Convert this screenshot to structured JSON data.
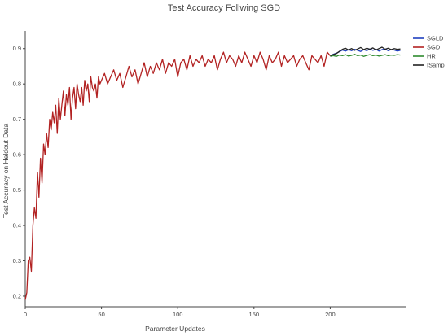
{
  "chart_data": {
    "type": "line",
    "title": "Test Accuracy Follwing SGD",
    "xlabel": "Parameter Updates",
    "ylabel": "Test Accuracy on Heldout Data",
    "xlim": [
      0,
      250
    ],
    "ylim": [
      0.17,
      0.95
    ],
    "xticks": [
      0,
      50,
      100,
      150,
      200
    ],
    "yticks": [
      0.2,
      0.3,
      0.4,
      0.5,
      0.6,
      0.7,
      0.8,
      0.9
    ],
    "grid": false,
    "legend": "top-right",
    "series": [
      {
        "name": "SGLD",
        "color": "#1f3fbf",
        "x": [
          200,
          202,
          204,
          206,
          208,
          210,
          212,
          214,
          216,
          218,
          220,
          222,
          224,
          226,
          228,
          230,
          232,
          234,
          236,
          238,
          240,
          242,
          244,
          246
        ],
        "y": [
          0.88,
          0.884,
          0.887,
          0.891,
          0.896,
          0.893,
          0.897,
          0.894,
          0.898,
          0.895,
          0.892,
          0.897,
          0.894,
          0.899,
          0.895,
          0.898,
          0.893,
          0.897,
          0.899,
          0.894,
          0.897,
          0.896,
          0.893,
          0.895
        ]
      },
      {
        "name": "SGD",
        "color": "#b22222",
        "x": [
          0,
          1,
          2,
          3,
          4,
          5,
          6,
          7,
          8,
          9,
          10,
          11,
          12,
          13,
          14,
          15,
          16,
          17,
          18,
          19,
          20,
          21,
          22,
          23,
          24,
          25,
          26,
          27,
          28,
          29,
          30,
          31,
          32,
          33,
          34,
          35,
          36,
          37,
          38,
          39,
          40,
          41,
          42,
          43,
          44,
          45,
          46,
          47,
          48,
          49,
          50,
          52,
          54,
          56,
          58,
          60,
          62,
          64,
          66,
          68,
          70,
          72,
          74,
          76,
          78,
          80,
          82,
          84,
          86,
          88,
          90,
          92,
          94,
          96,
          98,
          100,
          102,
          104,
          106,
          108,
          110,
          112,
          114,
          116,
          118,
          120,
          122,
          124,
          126,
          128,
          130,
          132,
          134,
          136,
          138,
          140,
          142,
          144,
          146,
          148,
          150,
          152,
          154,
          156,
          158,
          160,
          162,
          164,
          166,
          168,
          170,
          172,
          174,
          176,
          178,
          180,
          182,
          184,
          186,
          188,
          190,
          192,
          194,
          196,
          198,
          200
        ],
        "y": [
          0.19,
          0.21,
          0.3,
          0.31,
          0.27,
          0.4,
          0.45,
          0.42,
          0.55,
          0.48,
          0.59,
          0.52,
          0.63,
          0.6,
          0.66,
          0.62,
          0.7,
          0.67,
          0.72,
          0.69,
          0.74,
          0.66,
          0.76,
          0.7,
          0.74,
          0.78,
          0.71,
          0.77,
          0.74,
          0.79,
          0.7,
          0.76,
          0.79,
          0.73,
          0.8,
          0.77,
          0.75,
          0.79,
          0.74,
          0.81,
          0.78,
          0.8,
          0.75,
          0.82,
          0.79,
          0.78,
          0.8,
          0.76,
          0.82,
          0.8,
          0.81,
          0.83,
          0.8,
          0.82,
          0.84,
          0.81,
          0.83,
          0.79,
          0.82,
          0.85,
          0.82,
          0.84,
          0.8,
          0.83,
          0.86,
          0.82,
          0.85,
          0.83,
          0.86,
          0.84,
          0.87,
          0.83,
          0.86,
          0.85,
          0.87,
          0.82,
          0.86,
          0.87,
          0.84,
          0.88,
          0.85,
          0.87,
          0.86,
          0.88,
          0.85,
          0.87,
          0.86,
          0.88,
          0.84,
          0.87,
          0.89,
          0.86,
          0.88,
          0.87,
          0.85,
          0.88,
          0.86,
          0.89,
          0.87,
          0.85,
          0.88,
          0.86,
          0.89,
          0.87,
          0.84,
          0.88,
          0.86,
          0.87,
          0.89,
          0.85,
          0.88,
          0.86,
          0.87,
          0.88,
          0.85,
          0.87,
          0.88,
          0.86,
          0.84,
          0.88,
          0.87,
          0.86,
          0.88,
          0.85,
          0.89,
          0.88
        ]
      },
      {
        "name": "HR",
        "color": "#2e8b2e",
        "x": [
          200,
          202,
          204,
          206,
          208,
          210,
          212,
          214,
          216,
          218,
          220,
          222,
          224,
          226,
          228,
          230,
          232,
          234,
          236,
          238,
          240,
          242,
          244,
          246
        ],
        "y": [
          0.878,
          0.88,
          0.878,
          0.882,
          0.88,
          0.883,
          0.879,
          0.881,
          0.884,
          0.88,
          0.882,
          0.878,
          0.881,
          0.883,
          0.88,
          0.882,
          0.879,
          0.881,
          0.883,
          0.88,
          0.882,
          0.881,
          0.883,
          0.882
        ]
      },
      {
        "name": "ISamp",
        "color": "#222222",
        "x": [
          200,
          202,
          204,
          206,
          208,
          210,
          212,
          214,
          216,
          218,
          220,
          222,
          224,
          226,
          228,
          230,
          232,
          234,
          236,
          238,
          240,
          242,
          244,
          246
        ],
        "y": [
          0.88,
          0.883,
          0.886,
          0.892,
          0.898,
          0.901,
          0.896,
          0.9,
          0.895,
          0.899,
          0.903,
          0.897,
          0.901,
          0.898,
          0.902,
          0.896,
          0.9,
          0.904,
          0.898,
          0.901,
          0.897,
          0.9,
          0.898,
          0.899
        ]
      }
    ]
  }
}
